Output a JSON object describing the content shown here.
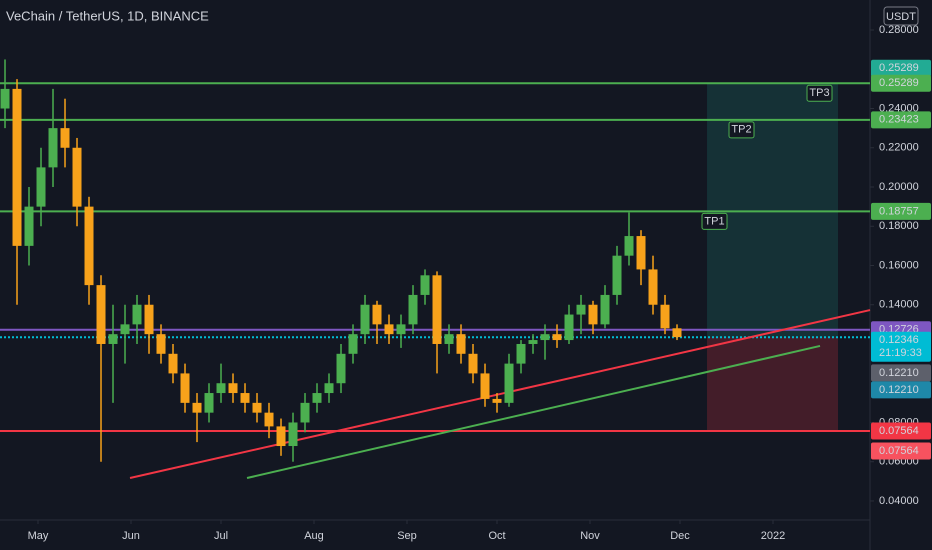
{
  "chart_data": {
    "type": "candlestick",
    "title": "VeChain / TetherUS, 1D, BINANCE",
    "currency": "USDT",
    "up_color": "#4caf50",
    "down_color": "#f7a21b",
    "x": [
      -11,
      -7,
      -3,
      1,
      5,
      9,
      13,
      17,
      21,
      25,
      29,
      33,
      37,
      41,
      45,
      49,
      53,
      57,
      61,
      65,
      69,
      73,
      77,
      81,
      85,
      89,
      93,
      97,
      101,
      105,
      109,
      113,
      117,
      121,
      125,
      129,
      133,
      137,
      141,
      145,
      149,
      153,
      157,
      161,
      165,
      169,
      173,
      177,
      181,
      185,
      189,
      193,
      197,
      201,
      205,
      209,
      213
    ],
    "open": [
      0.24,
      0.25,
      0.17,
      0.19,
      0.21,
      0.23,
      0.22,
      0.19,
      0.15,
      0.12,
      0.125,
      0.13,
      0.14,
      0.125,
      0.115,
      0.105,
      0.09,
      0.085,
      0.095,
      0.1,
      0.095,
      0.09,
      0.085,
      0.078,
      0.068,
      0.08,
      0.09,
      0.095,
      0.1,
      0.115,
      0.125,
      0.14,
      0.13,
      0.125,
      0.13,
      0.145,
      0.155,
      0.12,
      0.125,
      0.115,
      0.105,
      0.092,
      0.09,
      0.11,
      0.12,
      0.122,
      0.125,
      0.122,
      0.135,
      0.14,
      0.13,
      0.145,
      0.165,
      0.175,
      0.158,
      0.14,
      0.128
    ],
    "high": [
      0.265,
      0.255,
      0.2,
      0.22,
      0.25,
      0.245,
      0.225,
      0.195,
      0.155,
      0.14,
      0.14,
      0.145,
      0.145,
      0.13,
      0.12,
      0.11,
      0.095,
      0.1,
      0.11,
      0.105,
      0.1,
      0.095,
      0.09,
      0.082,
      0.085,
      0.095,
      0.1,
      0.105,
      0.12,
      0.13,
      0.145,
      0.142,
      0.135,
      0.135,
      0.15,
      0.158,
      0.157,
      0.13,
      0.13,
      0.12,
      0.11,
      0.095,
      0.115,
      0.122,
      0.125,
      0.13,
      0.13,
      0.14,
      0.145,
      0.142,
      0.15,
      0.17,
      0.187,
      0.178,
      0.165,
      0.145,
      0.13
    ],
    "low": [
      0.23,
      0.14,
      0.16,
      0.18,
      0.2,
      0.21,
      0.18,
      0.14,
      0.06,
      0.09,
      0.11,
      0.12,
      0.115,
      0.11,
      0.1,
      0.085,
      0.07,
      0.08,
      0.09,
      0.09,
      0.085,
      0.08,
      0.072,
      0.063,
      0.06,
      0.075,
      0.085,
      0.09,
      0.095,
      0.11,
      0.12,
      0.12,
      0.12,
      0.118,
      0.125,
      0.14,
      0.105,
      0.115,
      0.11,
      0.1,
      0.088,
      0.085,
      0.088,
      0.105,
      0.115,
      0.112,
      0.118,
      0.12,
      0.125,
      0.125,
      0.128,
      0.14,
      0.16,
      0.15,
      0.135,
      0.125,
      0.122
    ],
    "close": [
      0.25,
      0.17,
      0.19,
      0.21,
      0.23,
      0.22,
      0.19,
      0.15,
      0.12,
      0.125,
      0.13,
      0.14,
      0.125,
      0.115,
      0.105,
      0.09,
      0.085,
      0.095,
      0.1,
      0.095,
      0.09,
      0.085,
      0.078,
      0.068,
      0.08,
      0.09,
      0.095,
      0.1,
      0.115,
      0.125,
      0.14,
      0.13,
      0.125,
      0.13,
      0.145,
      0.155,
      0.12,
      0.125,
      0.115,
      0.105,
      0.092,
      0.09,
      0.11,
      0.12,
      0.122,
      0.125,
      0.122,
      0.135,
      0.14,
      0.13,
      0.145,
      0.165,
      0.175,
      0.158,
      0.14,
      0.128,
      0.1235
    ],
    "xlim": [
      -12.67,
      277.33
    ],
    "xticks": [
      {
        "value": 0,
        "label": "May"
      },
      {
        "value": 31,
        "label": "Jun"
      },
      {
        "value": 61,
        "label": "Jul"
      },
      {
        "value": 92,
        "label": "Aug"
      },
      {
        "value": 123,
        "label": "Sep"
      },
      {
        "value": 153,
        "label": "Oct"
      },
      {
        "value": 184,
        "label": "Nov"
      },
      {
        "value": 214,
        "label": "Dec"
      },
      {
        "value": 245,
        "label": "2022"
      }
    ],
    "ylim": [
      0.0303,
      0.2953
    ],
    "yticks": [
      {
        "value": 0.28,
        "label": "0.28000"
      },
      {
        "value": 0.24,
        "label": "0.24000"
      },
      {
        "value": 0.22,
        "label": "0.22000"
      },
      {
        "value": 0.2,
        "label": "0.20000"
      },
      {
        "value": 0.18,
        "label": "0.18000"
      },
      {
        "value": 0.16,
        "label": "0.16000"
      },
      {
        "value": 0.14,
        "label": "0.14000"
      },
      {
        "value": 0.08,
        "label": "0.08000"
      },
      {
        "value": 0.06,
        "label": "0.06000"
      },
      {
        "value": 0.04,
        "label": "0.04000"
      }
    ],
    "levels": [
      {
        "price": 0.25289,
        "color": "#4caf50"
      },
      {
        "price": 0.23423,
        "color": "#4caf50"
      },
      {
        "price": 0.18757,
        "color": "#4caf50"
      },
      {
        "price": 0.12726,
        "color": "#7e57c2"
      },
      {
        "price": 0.12346,
        "color": "#00bcd4",
        "dashed": true
      },
      {
        "price": 0.07564,
        "color": "#f23645"
      }
    ],
    "targets": [
      {
        "label": "TP1",
        "price": 0.18757,
        "x": 222
      },
      {
        "label": "TP2",
        "price": 0.23423,
        "x": 231
      },
      {
        "label": "TP3",
        "price": 0.25289,
        "x": 257
      }
    ],
    "position": {
      "start": 223,
      "end": 266.67,
      "entry": 0.12346,
      "target": 0.25289,
      "stop": 0.07564
    },
    "trendlines": [
      {
        "color": "#f23645",
        "x": [
          30.67,
          277.33
        ],
        "y": [
          0.0517,
          0.1373
        ]
      },
      {
        "color": "#4caf50",
        "x": [
          69.67,
          260.67
        ],
        "y": [
          0.0517,
          0.119
        ]
      }
    ],
    "price_tags": [
      {
        "price": 0.25289,
        "label": "0.25289",
        "color": "#22ab94"
      },
      {
        "price": 0.25289,
        "label": "0.25289",
        "color": "#4caf50"
      },
      {
        "price": 0.23423,
        "label": "0.23423",
        "color": "#4caf50"
      },
      {
        "price": 0.18757,
        "label": "0.18757",
        "color": "#4caf50"
      },
      {
        "price": 0.12726,
        "label": "0.12726",
        "color": "#7e57c2"
      },
      {
        "price": 0.12346,
        "label": "0.12346",
        "color": "#00bcd4"
      },
      {
        "price": 0.1221,
        "label": "0.12210",
        "color": "#5d606b"
      },
      {
        "price": 0.1221,
        "label": "0.12210",
        "color": "#1e88a8"
      },
      {
        "price": 0.07564,
        "label": "0.07564",
        "color": "#f23645"
      },
      {
        "price": 0.07564,
        "label": "0.07564",
        "color": "#f7525f"
      }
    ],
    "countdown": "21:19:33"
  }
}
